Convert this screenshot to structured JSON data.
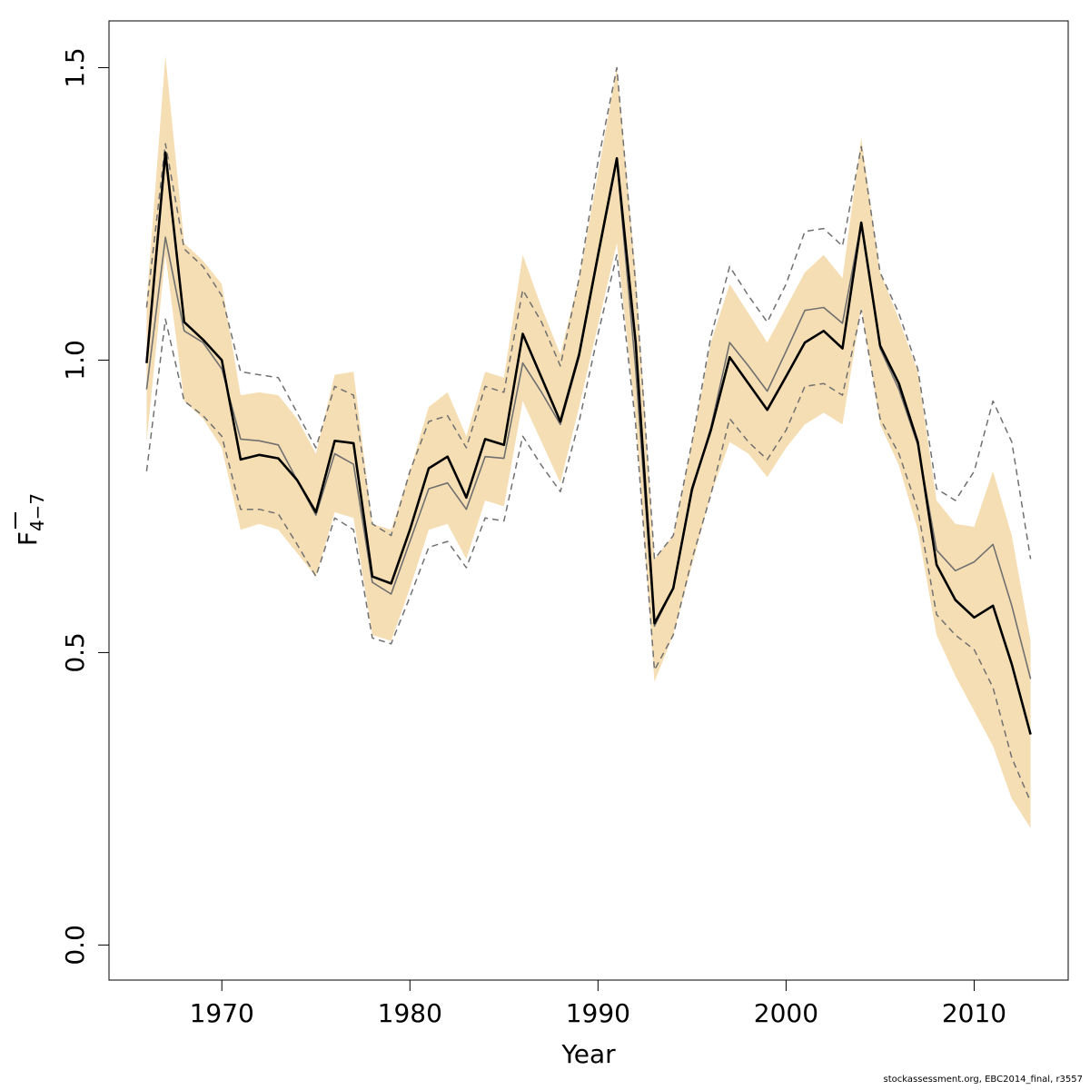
{
  "chart_data": {
    "type": "line",
    "xlabel": "Year",
    "ylabel": "F",
    "ylabel_subscript": "4−7",
    "xlim": [
      1964,
      2015
    ],
    "ylim": [
      -0.06,
      1.58
    ],
    "x_ticks": [
      1970,
      1980,
      1990,
      2000,
      2010
    ],
    "y_ticks": [
      0.0,
      0.5,
      1.0,
      1.5
    ],
    "y_tick_labels": [
      "0.0",
      "0.5",
      "1.0",
      "1.5"
    ],
    "x": [
      1966,
      1967,
      1968,
      1969,
      1970,
      1971,
      1972,
      1973,
      1974,
      1975,
      1976,
      1977,
      1978,
      1979,
      1980,
      1981,
      1982,
      1983,
      1984,
      1985,
      1986,
      1987,
      1988,
      1989,
      1990,
      1991,
      1992,
      1993,
      1994,
      1995,
      1996,
      1997,
      1998,
      1999,
      2000,
      2001,
      2002,
      2003,
      2004,
      2005,
      2006,
      2007,
      2008,
      2009,
      2010,
      2011,
      2012,
      2013
    ],
    "band": {
      "upper": [
        1.1,
        1.52,
        1.2,
        1.17,
        1.13,
        0.94,
        0.945,
        0.94,
        0.9,
        0.84,
        0.975,
        0.98,
        0.72,
        0.71,
        0.81,
        0.92,
        0.945,
        0.87,
        0.98,
        0.97,
        1.18,
        1.09,
        1.01,
        1.14,
        1.32,
        1.5,
        1.15,
        0.66,
        0.7,
        0.86,
        1.03,
        1.13,
        1.08,
        1.03,
        1.09,
        1.15,
        1.18,
        1.14,
        1.38,
        1.15,
        1.07,
        0.98,
        0.76,
        0.72,
        0.715,
        0.81,
        0.7,
        0.52
      ],
      "lower": [
        0.86,
        1.18,
        0.93,
        0.9,
        0.85,
        0.71,
        0.72,
        0.71,
        0.67,
        0.63,
        0.74,
        0.73,
        0.53,
        0.52,
        0.61,
        0.71,
        0.72,
        0.66,
        0.76,
        0.75,
        0.93,
        0.86,
        0.79,
        0.92,
        1.06,
        1.2,
        0.9,
        0.45,
        0.53,
        0.65,
        0.77,
        0.86,
        0.84,
        0.8,
        0.85,
        0.89,
        0.91,
        0.89,
        1.09,
        0.89,
        0.82,
        0.71,
        0.53,
        0.46,
        0.4,
        0.34,
        0.25,
        0.2
      ]
    },
    "series": [
      {
        "role": "estimate",
        "color": "#000000",
        "values": [
          0.995,
          1.355,
          1.065,
          1.035,
          1.0,
          0.83,
          0.838,
          0.832,
          0.795,
          0.74,
          0.862,
          0.858,
          0.63,
          0.618,
          0.71,
          0.815,
          0.835,
          0.765,
          0.865,
          0.855,
          1.045,
          0.97,
          0.895,
          1.01,
          1.18,
          1.345,
          1.03,
          0.55,
          0.61,
          0.78,
          0.88,
          1.005,
          0.96,
          0.915,
          0.972,
          1.03,
          1.05,
          1.02,
          1.235,
          1.025,
          0.96,
          0.86,
          0.65,
          0.59,
          0.56,
          0.58,
          0.48,
          0.36
        ]
      },
      {
        "role": "thin",
        "color": "#707070",
        "values": [
          0.95,
          1.21,
          1.05,
          1.03,
          0.985,
          0.865,
          0.862,
          0.855,
          0.795,
          0.735,
          0.84,
          0.822,
          0.62,
          0.6,
          0.69,
          0.78,
          0.79,
          0.745,
          0.835,
          0.832,
          0.995,
          0.945,
          0.89,
          1.005,
          1.175,
          1.34,
          0.985,
          0.545,
          0.61,
          0.775,
          0.885,
          1.03,
          0.99,
          0.947,
          1.015,
          1.085,
          1.09,
          1.063,
          1.235,
          1.02,
          0.95,
          0.855,
          0.675,
          0.64,
          0.655,
          0.685,
          0.58,
          0.455
        ]
      },
      {
        "role": "dashed-upper",
        "color": "#707070",
        "values": [
          1.09,
          1.37,
          1.19,
          1.16,
          1.11,
          0.98,
          0.975,
          0.97,
          0.91,
          0.85,
          0.955,
          0.94,
          0.72,
          0.7,
          0.81,
          0.895,
          0.905,
          0.85,
          0.955,
          0.945,
          1.12,
          1.065,
          0.99,
          1.14,
          1.34,
          1.5,
          1.13,
          0.66,
          0.7,
          0.86,
          1.04,
          1.16,
          1.11,
          1.065,
          1.13,
          1.22,
          1.225,
          1.195,
          1.365,
          1.15,
          1.08,
          0.985,
          0.78,
          0.76,
          0.81,
          0.93,
          0.86,
          0.66
        ]
      },
      {
        "role": "dashed-lower",
        "color": "#707070",
        "values": [
          0.81,
          1.07,
          0.93,
          0.905,
          0.87,
          0.745,
          0.745,
          0.737,
          0.685,
          0.63,
          0.73,
          0.71,
          0.525,
          0.515,
          0.595,
          0.68,
          0.69,
          0.645,
          0.73,
          0.725,
          0.87,
          0.82,
          0.775,
          0.895,
          1.045,
          1.18,
          0.89,
          0.47,
          0.53,
          0.66,
          0.77,
          0.9,
          0.86,
          0.83,
          0.88,
          0.955,
          0.96,
          0.94,
          1.085,
          0.9,
          0.84,
          0.745,
          0.565,
          0.53,
          0.505,
          0.44,
          0.32,
          0.245
        ]
      }
    ],
    "band_color": "#f5deb3",
    "grid": false,
    "legend": "none"
  },
  "footer": "stockassessment.org, EBC2014_final, r3557"
}
